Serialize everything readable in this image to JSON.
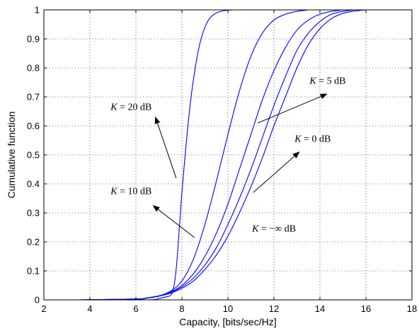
{
  "chart_data": {
    "type": "line",
    "xlabel": "Capacity, [bits/sec/Hz]",
    "ylabel": "Cumulative function",
    "xlim": [
      2,
      18
    ],
    "ylim": [
      0,
      1
    ],
    "xticks": [
      2,
      4,
      6,
      8,
      10,
      12,
      14,
      16,
      18
    ],
    "yticks": [
      0,
      0.1,
      0.2,
      0.3,
      0.4,
      0.5,
      0.6,
      0.7,
      0.8,
      0.9,
      1
    ],
    "xtick_labels": [
      "2",
      "4",
      "6",
      "8",
      "10",
      "12",
      "14",
      "16",
      "18"
    ],
    "ytick_labels": [
      "0",
      "0.1",
      "0.2",
      "0.3",
      "0.4",
      "0.5",
      "0.6",
      "0.7",
      "0.8",
      "0.9",
      "1"
    ],
    "grid": true,
    "line_color": "#0000ff",
    "series": [
      {
        "x": [
          3.5,
          6.5,
          7.0,
          7.3,
          7.5,
          7.6,
          7.7,
          7.8,
          7.9,
          8.0,
          8.2,
          8.4,
          8.6,
          8.8,
          9.0,
          9.2,
          9.4,
          9.6,
          9.8,
          10.0,
          10.2
        ],
        "y": [
          0,
          0,
          0.005,
          0.01,
          0.015,
          0.03,
          0.07,
          0.15,
          0.26,
          0.37,
          0.55,
          0.7,
          0.81,
          0.89,
          0.94,
          0.97,
          0.985,
          0.993,
          0.997,
          0.999,
          1.0
        ]
      },
      {
        "x": [
          3.5,
          6.0,
          6.5,
          7.0,
          7.5,
          8.0,
          8.5,
          9.0,
          9.5,
          10.0,
          10.5,
          11.0,
          11.5,
          12.0,
          12.5,
          13.0,
          13.5
        ],
        "y": [
          0,
          0.002,
          0.006,
          0.013,
          0.03,
          0.065,
          0.14,
          0.26,
          0.41,
          0.57,
          0.72,
          0.84,
          0.92,
          0.965,
          0.985,
          0.995,
          1.0
        ]
      },
      {
        "x": [
          3.5,
          6.0,
          6.5,
          7.0,
          7.5,
          8.0,
          8.5,
          9.0,
          9.5,
          10.0,
          10.5,
          11.0,
          11.5,
          12.0,
          12.5,
          13.0,
          13.5,
          14.0,
          14.5,
          15.0
        ],
        "y": [
          0,
          0.003,
          0.007,
          0.014,
          0.027,
          0.05,
          0.09,
          0.15,
          0.23,
          0.33,
          0.45,
          0.57,
          0.69,
          0.79,
          0.87,
          0.93,
          0.965,
          0.985,
          0.995,
          1.0
        ]
      },
      {
        "x": [
          3.5,
          6.0,
          6.5,
          7.0,
          7.5,
          8.0,
          8.5,
          9.0,
          9.5,
          10.0,
          10.5,
          11.0,
          11.5,
          12.0,
          12.5,
          13.0,
          13.5,
          14.0,
          14.5,
          15.0,
          15.5
        ],
        "y": [
          0,
          0.003,
          0.007,
          0.014,
          0.025,
          0.045,
          0.075,
          0.12,
          0.18,
          0.26,
          0.35,
          0.45,
          0.56,
          0.67,
          0.77,
          0.86,
          0.92,
          0.96,
          0.985,
          0.995,
          1.0
        ]
      },
      {
        "x": [
          3.5,
          6.0,
          6.5,
          7.0,
          7.5,
          8.0,
          8.5,
          9.0,
          9.5,
          10.0,
          10.5,
          11.0,
          11.5,
          12.0,
          12.5,
          13.0,
          13.5,
          14.0,
          14.5,
          15.0,
          15.5,
          16.0
        ],
        "y": [
          0,
          0.003,
          0.007,
          0.013,
          0.023,
          0.04,
          0.065,
          0.105,
          0.155,
          0.22,
          0.3,
          0.39,
          0.49,
          0.6,
          0.7,
          0.8,
          0.88,
          0.935,
          0.97,
          0.988,
          0.996,
          1.0
        ]
      }
    ],
    "annotations": [
      {
        "prefix": "K",
        "rest": " = 20 dB",
        "text_x": 4.9,
        "text_y": 0.655,
        "arrow_from": [
          7.75,
          0.42
        ],
        "arrow_to": [
          6.85,
          0.63
        ]
      },
      {
        "prefix": "K",
        "rest": " = 5 dB",
        "text_x": 13.55,
        "text_y": 0.745,
        "arrow_from": [
          11.3,
          0.61
        ],
        "arrow_to": [
          14.3,
          0.71
        ]
      },
      {
        "prefix": "K",
        "rest": " = 0 dB",
        "text_x": 12.9,
        "text_y": 0.545,
        "arrow_from": [
          11.1,
          0.37
        ],
        "arrow_to": [
          13.1,
          0.51
        ]
      },
      {
        "prefix": "K",
        "rest": " = 10 dB",
        "text_x": 4.9,
        "text_y": 0.365,
        "arrow_from": [
          8.55,
          0.215
        ],
        "arrow_to": [
          6.75,
          0.325
        ]
      },
      {
        "prefix": "K",
        "rest": " = −∞ dB",
        "text_x": 11.05,
        "text_y": 0.235,
        "arrow_from": null,
        "arrow_to": null
      }
    ]
  }
}
